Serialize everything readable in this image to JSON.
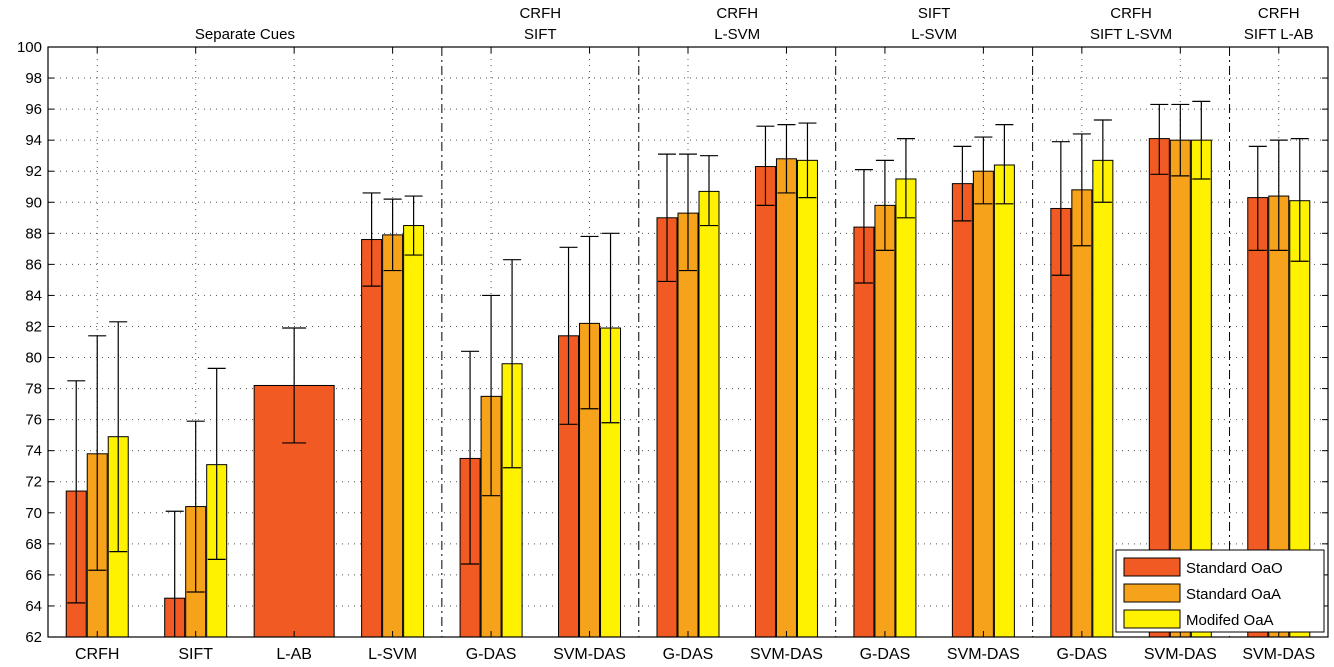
{
  "chart_data": {
    "type": "bar",
    "ylim": [
      62,
      100
    ],
    "yticks": [
      62,
      64,
      66,
      68,
      70,
      72,
      74,
      76,
      78,
      80,
      82,
      84,
      86,
      88,
      90,
      92,
      94,
      96,
      98,
      100
    ],
    "grid": true,
    "legend_position": "bottom-right",
    "groups": [
      {
        "label_lines": [
          "Separate Cues"
        ],
        "categories": [
          "CRFH",
          "SIFT",
          "L-AB",
          "L-SVM"
        ]
      },
      {
        "label_lines": [
          "CRFH",
          "SIFT"
        ],
        "categories": [
          "G-DAS",
          "SVM-DAS"
        ]
      },
      {
        "label_lines": [
          "CRFH",
          "L-SVM"
        ],
        "categories": [
          "G-DAS",
          "SVM-DAS"
        ]
      },
      {
        "label_lines": [
          "SIFT",
          "L-SVM"
        ],
        "categories": [
          "G-DAS",
          "SVM-DAS"
        ]
      },
      {
        "label_lines": [
          "CRFH",
          "SIFT L-SVM"
        ],
        "categories": [
          "G-DAS",
          "SVM-DAS"
        ]
      },
      {
        "label_lines": [
          "CRFH",
          "SIFT L-AB"
        ],
        "categories": [
          "SVM-DAS"
        ]
      }
    ],
    "categories": [
      "CRFH",
      "SIFT",
      "L-AB",
      "L-SVM",
      "G-DAS",
      "SVM-DAS",
      "G-DAS",
      "SVM-DAS",
      "G-DAS",
      "SVM-DAS",
      "G-DAS",
      "SVM-DAS",
      "SVM-DAS"
    ],
    "series": [
      {
        "name": "Standard OaO",
        "color": "#f15a22",
        "values": [
          71.4,
          64.5,
          78.2,
          87.6,
          73.5,
          81.4,
          89.0,
          92.3,
          88.4,
          91.2,
          89.6,
          94.1,
          90.3
        ],
        "err_low": [
          64.2,
          58.9,
          74.5,
          84.6,
          66.7,
          75.7,
          84.9,
          89.8,
          84.8,
          88.8,
          85.3,
          91.8,
          86.9
        ],
        "err_high": [
          78.5,
          70.1,
          81.9,
          90.6,
          80.4,
          87.1,
          93.1,
          94.9,
          92.1,
          93.6,
          93.9,
          96.3,
          93.6
        ]
      },
      {
        "name": "Standard OaA",
        "color": "#f7a21b",
        "values": [
          73.8,
          70.4,
          null,
          87.9,
          77.5,
          82.2,
          89.3,
          92.8,
          89.8,
          92.0,
          90.8,
          94.0,
          90.4
        ],
        "err_low": [
          66.3,
          64.9,
          null,
          85.6,
          71.1,
          76.7,
          85.6,
          90.6,
          86.9,
          89.9,
          87.2,
          91.7,
          86.9
        ],
        "err_high": [
          81.4,
          75.9,
          null,
          90.2,
          84.0,
          87.8,
          93.1,
          95.0,
          92.7,
          94.2,
          94.4,
          96.3,
          94.0
        ]
      },
      {
        "name": "Modifed OaA",
        "color": "#fff200",
        "values": [
          74.9,
          73.1,
          null,
          88.5,
          79.6,
          81.9,
          90.7,
          92.7,
          91.5,
          92.4,
          92.7,
          94.0,
          90.1
        ],
        "err_low": [
          67.5,
          67.0,
          null,
          86.6,
          72.9,
          75.8,
          88.5,
          90.3,
          89.0,
          89.9,
          90.0,
          91.5,
          86.2
        ],
        "err_high": [
          82.3,
          79.3,
          null,
          90.4,
          86.3,
          88.0,
          93.0,
          95.1,
          94.1,
          95.0,
          95.3,
          96.5,
          94.1
        ]
      }
    ]
  }
}
